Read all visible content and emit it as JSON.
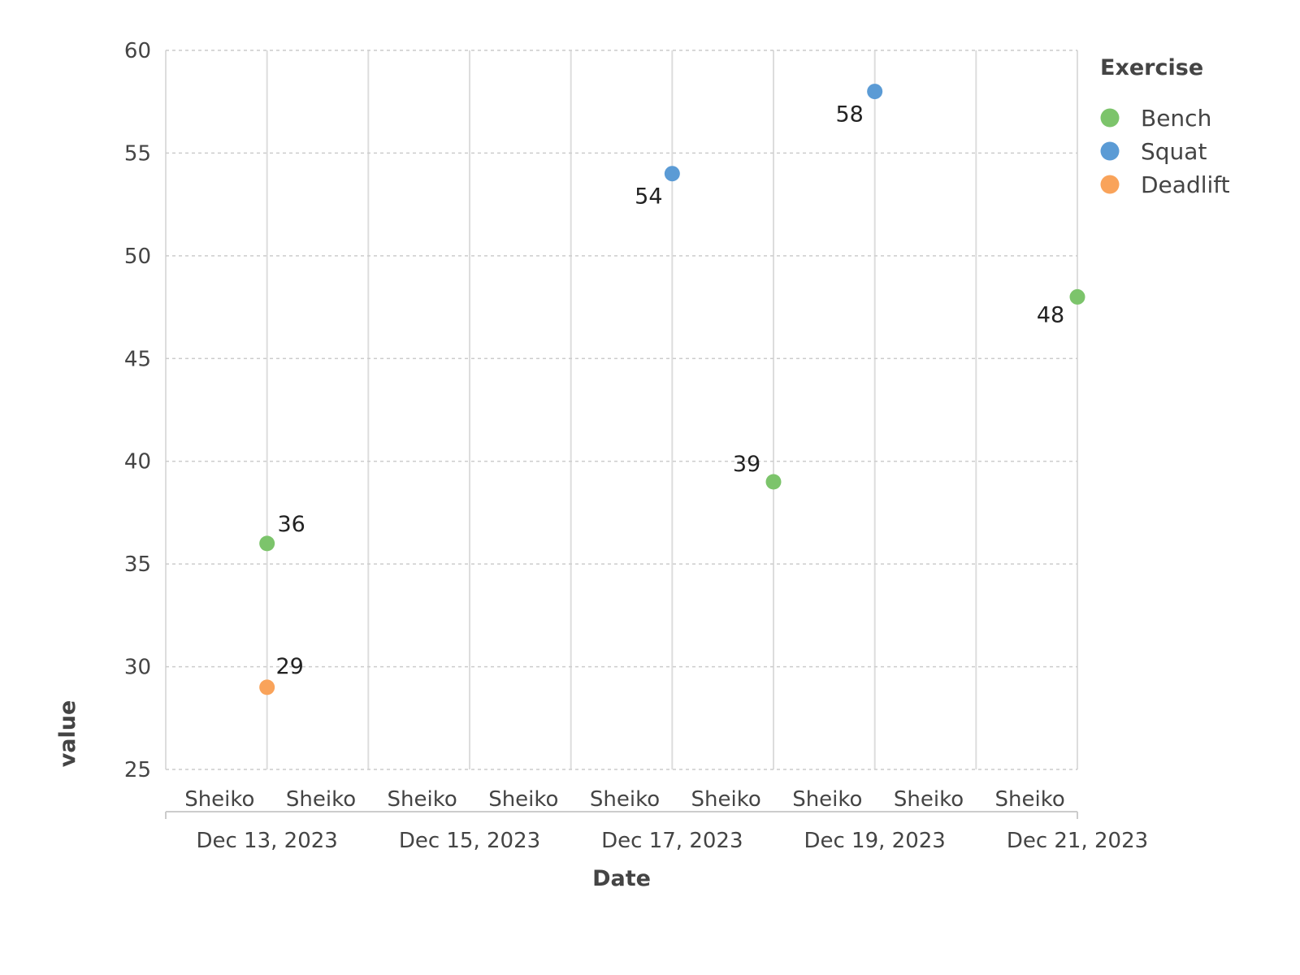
{
  "chart_data": {
    "type": "scatter",
    "title": "",
    "xlabel": "Date",
    "ylabel": "value",
    "ylim": [
      25,
      60
    ],
    "y_ticks": [
      25,
      30,
      35,
      40,
      45,
      50,
      55,
      60
    ],
    "x_range": [
      "Dec 12, 2023 12:00",
      "Dec 21, 2023 12:00"
    ],
    "x_tick_labels": [
      "Dec 13, 2023",
      "Dec 15, 2023",
      "Dec 17, 2023",
      "Dec 19, 2023",
      "Dec 21, 2023"
    ],
    "x_ticks": [
      "Dec 13, 2023",
      "Dec 15, 2023",
      "Dec 17, 2023",
      "Dec 19, 2023",
      "Dec 21, 2023"
    ],
    "band_labels": [
      "Sheiko",
      "Sheiko",
      "Sheiko",
      "Sheiko",
      "Sheiko",
      "Sheiko",
      "Sheiko",
      "Sheiko",
      "Sheiko"
    ],
    "grid": true,
    "legend": {
      "title": "Exercise",
      "placement": "right"
    },
    "series": [
      {
        "name": "Bench",
        "color": "#7cc46b",
        "points": [
          {
            "x": "Dec 13, 2023",
            "y": 36,
            "label": "36"
          },
          {
            "x": "Dec 18, 2023",
            "y": 39,
            "label": "39"
          },
          {
            "x": "Dec 21, 2023",
            "y": 48,
            "label": "48"
          }
        ]
      },
      {
        "name": "Squat",
        "color": "#5b9bd5",
        "points": [
          {
            "x": "Dec 17, 2023",
            "y": 54,
            "label": "54"
          },
          {
            "x": "Dec 19, 2023",
            "y": 58,
            "label": "58"
          }
        ]
      },
      {
        "name": "Deadlift",
        "color": "#f9a35a",
        "points": [
          {
            "x": "Dec 13, 2023",
            "y": 29,
            "label": "29"
          }
        ]
      }
    ]
  }
}
